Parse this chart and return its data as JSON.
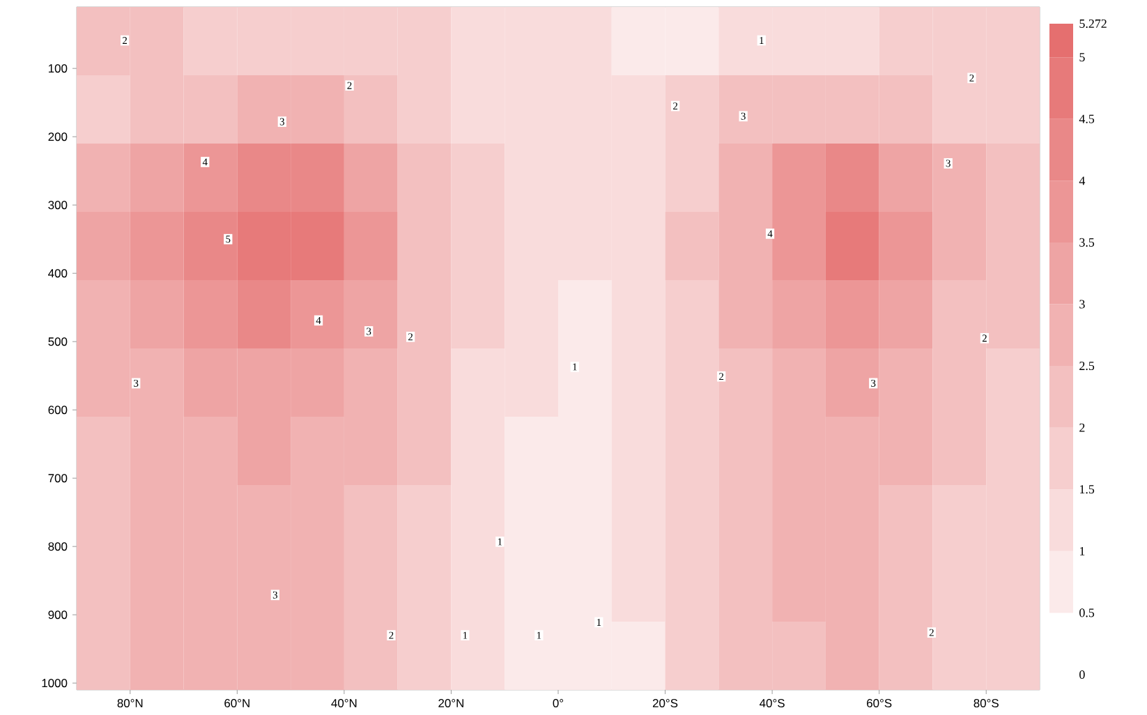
{
  "chart_data": {
    "type": "heatmap",
    "x": [
      85,
      75,
      65,
      55,
      45,
      35,
      25,
      15,
      5,
      -5,
      -15,
      -25,
      -35,
      -45,
      -55,
      -65,
      -75,
      -85
    ],
    "y": [
      60,
      160,
      260,
      360,
      460,
      560,
      660,
      760,
      860,
      960
    ],
    "xlim": [
      90,
      -90
    ],
    "ylim": [
      1010,
      10
    ],
    "xticks": [
      {
        "value": 80,
        "label": "80°N"
      },
      {
        "value": 60,
        "label": "60°N"
      },
      {
        "value": 40,
        "label": "40°N"
      },
      {
        "value": 20,
        "label": "20°N"
      },
      {
        "value": 0,
        "label": "0°"
      },
      {
        "value": -20,
        "label": "20°S"
      },
      {
        "value": -40,
        "label": "40°S"
      },
      {
        "value": -60,
        "label": "60°S"
      },
      {
        "value": -80,
        "label": "80°S"
      }
    ],
    "yticks": [
      100,
      200,
      300,
      400,
      500,
      600,
      700,
      800,
      900,
      1000
    ],
    "cells": [
      [
        2.2,
        2.1,
        1.9,
        1.8,
        1.8,
        1.7,
        1.6,
        1.3,
        1.3,
        1.2,
        1.0,
        1.0,
        1.1,
        1.4,
        1.5,
        1.6,
        1.7,
        1.8
      ],
      [
        1.9,
        2.2,
        2.4,
        2.6,
        2.6,
        2.3,
        1.8,
        1.5,
        1.4,
        1.4,
        1.5,
        1.8,
        2.1,
        2.3,
        2.4,
        2.3,
        2.0,
        2.0
      ],
      [
        2.8,
        3.4,
        3.8,
        4.2,
        4.1,
        3.5,
        2.4,
        1.6,
        1.3,
        1.3,
        1.5,
        2.0,
        2.7,
        3.6,
        4.1,
        3.4,
        2.8,
        2.4
      ],
      [
        3.3,
        3.8,
        4.4,
        5.0,
        4.7,
        3.9,
        2.5,
        1.6,
        1.2,
        1.2,
        1.5,
        2.1,
        2.8,
        3.9,
        4.6,
        3.7,
        2.9,
        2.5
      ],
      [
        3.0,
        3.3,
        3.8,
        4.2,
        4.0,
        3.4,
        2.3,
        1.6,
        1.1,
        1.0,
        1.4,
        1.9,
        2.6,
        3.3,
        3.7,
        3.2,
        2.5,
        2.1
      ],
      [
        2.7,
        3.0,
        3.2,
        3.5,
        3.3,
        2.9,
        2.2,
        1.5,
        1.1,
        0.9,
        1.3,
        1.8,
        2.4,
        2.8,
        3.1,
        2.8,
        2.2,
        1.9
      ],
      [
        2.5,
        2.6,
        2.9,
        3.1,
        2.9,
        2.6,
        2.1,
        1.4,
        1.0,
        0.9,
        1.2,
        1.7,
        2.3,
        2.6,
        2.8,
        2.6,
        2.1,
        1.8
      ],
      [
        2.4,
        2.7,
        2.8,
        3.0,
        2.8,
        2.5,
        2.0,
        1.3,
        0.9,
        0.8,
        1.1,
        1.7,
        2.3,
        2.6,
        2.7,
        2.5,
        2.0,
        1.8
      ],
      [
        2.4,
        2.6,
        2.8,
        3.0,
        2.8,
        2.5,
        2.0,
        1.3,
        0.9,
        0.8,
        1.1,
        1.6,
        2.3,
        2.6,
        2.8,
        2.5,
        1.9,
        1.7
      ],
      [
        2.4,
        2.6,
        2.7,
        2.9,
        2.8,
        2.4,
        2.0,
        1.3,
        0.9,
        0.9,
        1.0,
        1.6,
        2.2,
        2.5,
        2.7,
        2.4,
        1.9,
        1.7
      ]
    ],
    "clim": [
      0,
      5.272
    ],
    "cticks": [
      0,
      0.5,
      1,
      1.5,
      2,
      2.5,
      3,
      3.5,
      4,
      4.5,
      5,
      5.272
    ],
    "colors": [
      "#ffffff",
      "#e46b6b"
    ],
    "annotations": [
      "2",
      "2",
      "3",
      "4",
      "5",
      "4",
      "3",
      "2",
      "3",
      "3",
      "2",
      "1",
      "1",
      "1",
      "1",
      "1",
      "2",
      "3",
      "2",
      "3",
      "4",
      "2",
      "3",
      "2",
      "2",
      "1"
    ]
  }
}
